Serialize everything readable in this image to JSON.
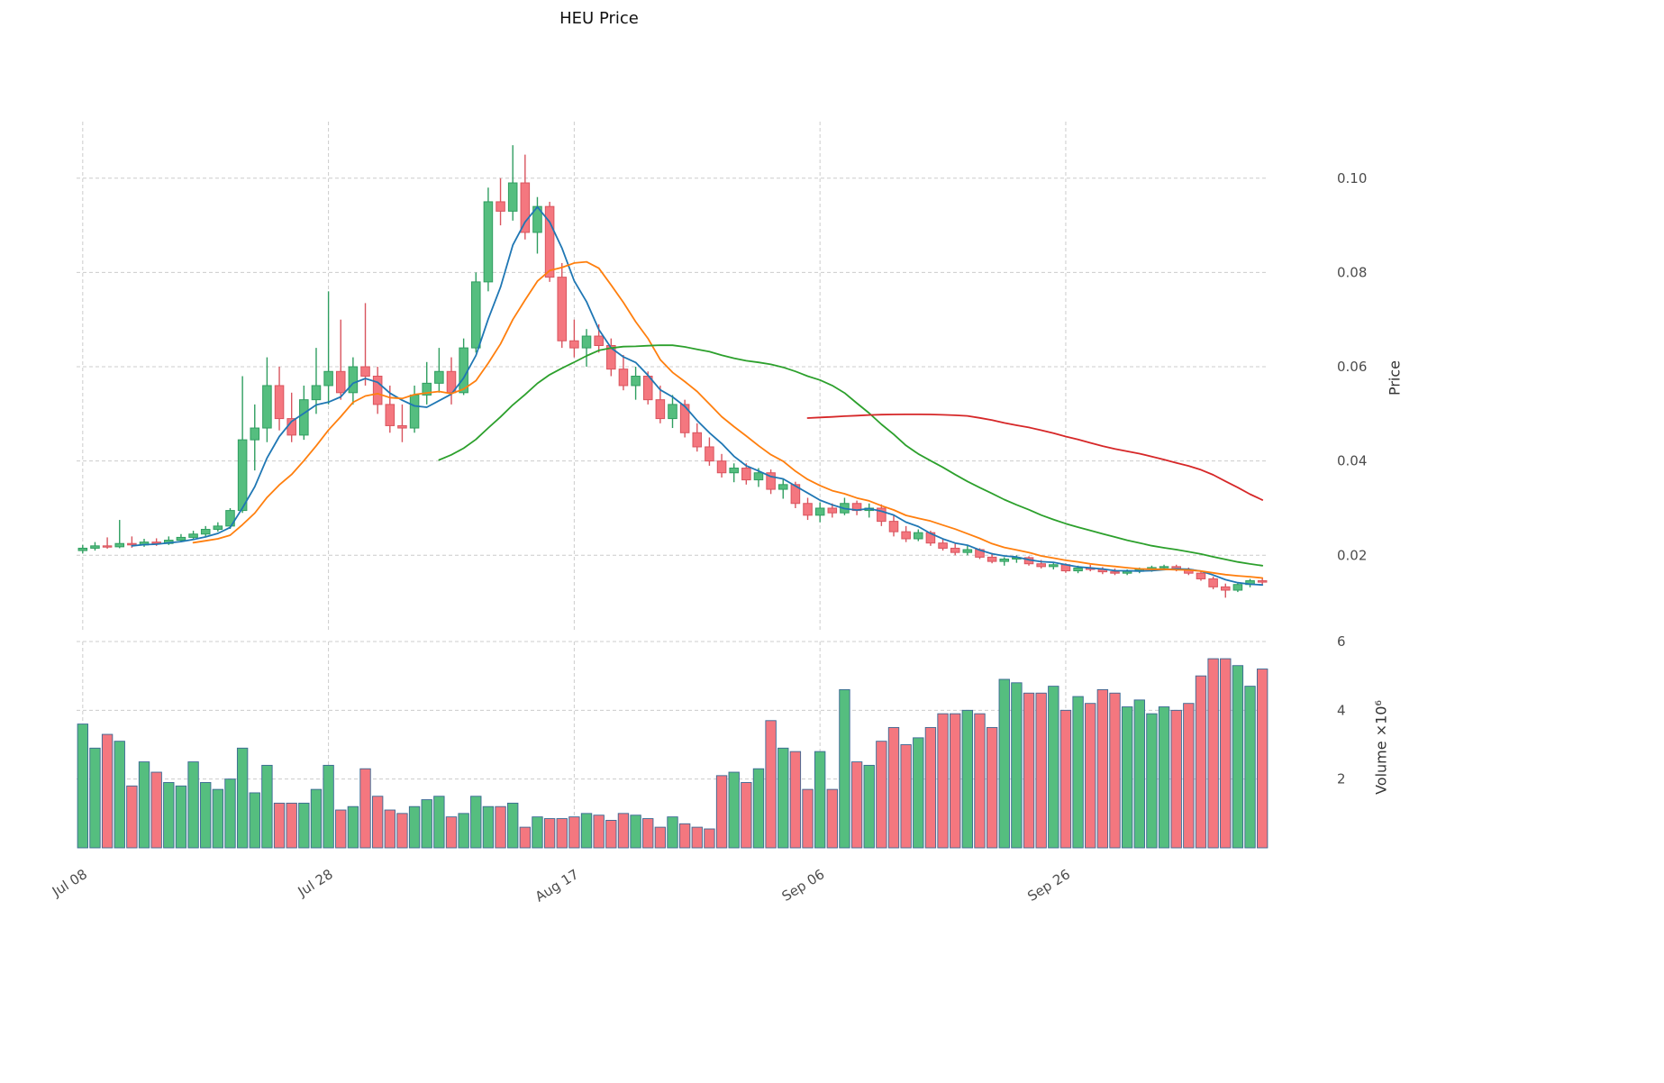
{
  "chart_data": {
    "type": "candlestick",
    "title": "HEU Price",
    "ylabel_price": "Price",
    "ylabel_volume": "Volume ×10⁶",
    "legend_position": "none",
    "grid": true,
    "price_axis": {
      "ticks": [
        0.02,
        0.04,
        0.06,
        0.08,
        0.1
      ],
      "min": 0.004,
      "max": 0.112
    },
    "volume_axis": {
      "ticks": [
        2,
        4,
        6
      ],
      "min": 0,
      "max": 6.0,
      "unit": "1e6"
    },
    "x_ticks": [
      {
        "label": "Jul 08",
        "index": 0
      },
      {
        "label": "Jul 28",
        "index": 20
      },
      {
        "label": "Aug 17",
        "index": 40
      },
      {
        "label": "Sep 06",
        "index": 60
      },
      {
        "label": "Sep 26",
        "index": 80
      }
    ],
    "moving_averages": [
      {
        "window": 5,
        "color": "#1f77b4"
      },
      {
        "window": 10,
        "color": "#ff7f0e"
      },
      {
        "window": 30,
        "color": "#2ca02c"
      },
      {
        "window": 60,
        "color": "#d62728"
      }
    ],
    "colors": {
      "up": "#55be7f",
      "up_edge": "#2f9e60",
      "down": "#f4777f",
      "down_edge": "#d9545e",
      "volume_edge": "#3a6894",
      "grid": "#cccccc",
      "background": "#ffffff"
    },
    "columns": [
      "date",
      "open",
      "high",
      "low",
      "close",
      "volume_millions"
    ],
    "ohlc": [
      [
        "Jul 08",
        0.021,
        0.0222,
        0.0204,
        0.0215,
        3.6
      ],
      [
        "Jul 09",
        0.0215,
        0.0228,
        0.021,
        0.022,
        2.9
      ],
      [
        "Jul 10",
        0.022,
        0.0238,
        0.0214,
        0.0218,
        3.3
      ],
      [
        "Jul 11",
        0.0218,
        0.0275,
        0.0215,
        0.0225,
        3.1
      ],
      [
        "Jul 12",
        0.0225,
        0.024,
        0.0216,
        0.0222,
        1.8
      ],
      [
        "Jul 13",
        0.0222,
        0.0235,
        0.0218,
        0.0228,
        2.5
      ],
      [
        "Jul 14",
        0.0228,
        0.0236,
        0.022,
        0.0225,
        2.2
      ],
      [
        "Jul 15",
        0.0225,
        0.024,
        0.0222,
        0.0232,
        1.9
      ],
      [
        "Jul 16",
        0.0232,
        0.0245,
        0.0228,
        0.0238,
        1.8
      ],
      [
        "Jul 17",
        0.0238,
        0.0252,
        0.0233,
        0.0245,
        2.5
      ],
      [
        "Jul 18",
        0.0245,
        0.0262,
        0.024,
        0.0255,
        1.9
      ],
      [
        "Jul 19",
        0.0255,
        0.027,
        0.025,
        0.0262,
        1.7
      ],
      [
        "Jul 20",
        0.0262,
        0.03,
        0.0256,
        0.0295,
        2.0
      ],
      [
        "Jul 21",
        0.0295,
        0.058,
        0.029,
        0.0445,
        2.9
      ],
      [
        "Jul 22",
        0.0445,
        0.052,
        0.038,
        0.047,
        1.6
      ],
      [
        "Jul 23",
        0.047,
        0.062,
        0.044,
        0.056,
        2.4
      ],
      [
        "Jul 24",
        0.056,
        0.06,
        0.0465,
        0.049,
        1.3
      ],
      [
        "Jul 25",
        0.049,
        0.0545,
        0.044,
        0.0455,
        1.3
      ],
      [
        "Jul 26",
        0.0455,
        0.056,
        0.0445,
        0.053,
        1.3
      ],
      [
        "Jul 27",
        0.053,
        0.064,
        0.05,
        0.056,
        1.7
      ],
      [
        "Jul 28",
        0.056,
        0.076,
        0.052,
        0.059,
        2.4
      ],
      [
        "Jul 29",
        0.059,
        0.07,
        0.053,
        0.0545,
        1.1
      ],
      [
        "Jul 30",
        0.0545,
        0.062,
        0.052,
        0.06,
        1.2
      ],
      [
        "Jul 31",
        0.06,
        0.0735,
        0.056,
        0.058,
        2.3
      ],
      [
        "Aug 01",
        0.058,
        0.06,
        0.05,
        0.052,
        1.5
      ],
      [
        "Aug 02",
        0.052,
        0.056,
        0.046,
        0.0475,
        1.1
      ],
      [
        "Aug 03",
        0.0475,
        0.052,
        0.044,
        0.047,
        1.0
      ],
      [
        "Aug 04",
        0.047,
        0.056,
        0.046,
        0.054,
        1.2
      ],
      [
        "Aug 05",
        0.054,
        0.061,
        0.052,
        0.0565,
        1.4
      ],
      [
        "Aug 06",
        0.0565,
        0.064,
        0.0545,
        0.059,
        1.5
      ],
      [
        "Aug 07",
        0.059,
        0.062,
        0.052,
        0.0545,
        0.9
      ],
      [
        "Aug 08",
        0.0545,
        0.066,
        0.054,
        0.064,
        1.0
      ],
      [
        "Aug 09",
        0.064,
        0.08,
        0.063,
        0.078,
        1.5
      ],
      [
        "Aug 10",
        0.078,
        0.098,
        0.076,
        0.095,
        1.2
      ],
      [
        "Aug 11",
        0.095,
        0.1,
        0.09,
        0.093,
        1.2
      ],
      [
        "Aug 12",
        0.093,
        0.107,
        0.091,
        0.099,
        1.3
      ],
      [
        "Aug 13",
        0.099,
        0.105,
        0.087,
        0.0885,
        0.6
      ],
      [
        "Aug 14",
        0.0885,
        0.096,
        0.084,
        0.094,
        0.9
      ],
      [
        "Aug 15",
        0.094,
        0.095,
        0.078,
        0.079,
        0.85
      ],
      [
        "Aug 16",
        0.079,
        0.082,
        0.064,
        0.0655,
        0.85
      ],
      [
        "Aug 17",
        0.0655,
        0.07,
        0.062,
        0.064,
        0.9
      ],
      [
        "Aug 18",
        0.064,
        0.068,
        0.06,
        0.0665,
        1.0
      ],
      [
        "Aug 19",
        0.0665,
        0.069,
        0.063,
        0.0645,
        0.95
      ],
      [
        "Aug 20",
        0.0645,
        0.066,
        0.058,
        0.0595,
        0.8
      ],
      [
        "Aug 21",
        0.0595,
        0.0625,
        0.055,
        0.056,
        1.0
      ],
      [
        "Aug 22",
        0.056,
        0.06,
        0.053,
        0.058,
        0.95
      ],
      [
        "Aug 23",
        0.058,
        0.059,
        0.052,
        0.053,
        0.85
      ],
      [
        "Aug 24",
        0.053,
        0.056,
        0.048,
        0.049,
        0.6
      ],
      [
        "Aug 25",
        0.049,
        0.054,
        0.047,
        0.052,
        0.9
      ],
      [
        "Aug 26",
        0.052,
        0.053,
        0.045,
        0.046,
        0.7
      ],
      [
        "Aug 27",
        0.046,
        0.048,
        0.042,
        0.043,
        0.6
      ],
      [
        "Aug 28",
        0.043,
        0.045,
        0.039,
        0.04,
        0.55
      ],
      [
        "Aug 29",
        0.04,
        0.0415,
        0.0365,
        0.0375,
        2.1
      ],
      [
        "Aug 30",
        0.0375,
        0.0395,
        0.0355,
        0.0385,
        2.2
      ],
      [
        "Aug 31",
        0.0385,
        0.0395,
        0.035,
        0.036,
        1.9
      ],
      [
        "Sep 01",
        0.036,
        0.0385,
        0.0345,
        0.0375,
        2.3
      ],
      [
        "Sep 02",
        0.0375,
        0.0382,
        0.033,
        0.034,
        3.7
      ],
      [
        "Sep 03",
        0.034,
        0.0362,
        0.032,
        0.035,
        2.9
      ],
      [
        "Sep 04",
        0.035,
        0.0356,
        0.03,
        0.031,
        2.8
      ],
      [
        "Sep 05",
        0.031,
        0.0322,
        0.0275,
        0.0285,
        1.7
      ],
      [
        "Sep 06",
        0.0285,
        0.0312,
        0.027,
        0.03,
        2.8
      ],
      [
        "Sep 07",
        0.03,
        0.031,
        0.028,
        0.029,
        1.7
      ],
      [
        "Sep 08",
        0.029,
        0.0322,
        0.0285,
        0.031,
        4.6
      ],
      [
        "Sep 09",
        0.031,
        0.0316,
        0.0285,
        0.0295,
        2.5
      ],
      [
        "Sep 10",
        0.0295,
        0.031,
        0.028,
        0.03,
        2.4
      ],
      [
        "Sep 11",
        0.03,
        0.0308,
        0.0262,
        0.0272,
        3.1
      ],
      [
        "Sep 12",
        0.0272,
        0.0285,
        0.024,
        0.025,
        3.5
      ],
      [
        "Sep 13",
        0.025,
        0.0262,
        0.0228,
        0.0235,
        3.0
      ],
      [
        "Sep 14",
        0.0235,
        0.0255,
        0.023,
        0.0248,
        3.2
      ],
      [
        "Sep 15",
        0.0248,
        0.0252,
        0.022,
        0.0226,
        3.5
      ],
      [
        "Sep 16",
        0.0226,
        0.0235,
        0.021,
        0.0215,
        3.9
      ],
      [
        "Sep 17",
        0.0215,
        0.0225,
        0.02,
        0.0206,
        3.9
      ],
      [
        "Sep 18",
        0.0206,
        0.022,
        0.02,
        0.0212,
        4.0
      ],
      [
        "Sep 19",
        0.0212,
        0.0215,
        0.0192,
        0.0196,
        3.9
      ],
      [
        "Sep 20",
        0.0196,
        0.0205,
        0.0183,
        0.0187,
        3.5
      ],
      [
        "Sep 21",
        0.0187,
        0.0196,
        0.0178,
        0.0192,
        4.9
      ],
      [
        "Sep 22",
        0.0192,
        0.02,
        0.0184,
        0.0195,
        4.8
      ],
      [
        "Sep 23",
        0.0195,
        0.0198,
        0.0178,
        0.0182,
        4.5
      ],
      [
        "Sep 24",
        0.0182,
        0.019,
        0.0172,
        0.0176,
        4.5
      ],
      [
        "Sep 25",
        0.0176,
        0.0185,
        0.017,
        0.018,
        4.7
      ],
      [
        "Sep 26",
        0.018,
        0.0183,
        0.0163,
        0.0167,
        4.0
      ],
      [
        "Sep 27",
        0.0167,
        0.0178,
        0.0162,
        0.0173,
        4.4
      ],
      [
        "Sep 28",
        0.0173,
        0.018,
        0.0166,
        0.017,
        4.2
      ],
      [
        "Sep 29",
        0.017,
        0.0175,
        0.016,
        0.0165,
        4.6
      ],
      [
        "Sep 30",
        0.0165,
        0.0172,
        0.0158,
        0.0162,
        4.5
      ],
      [
        "Oct 01",
        0.0162,
        0.017,
        0.0158,
        0.0166,
        4.1
      ],
      [
        "Oct 02",
        0.0166,
        0.0174,
        0.0162,
        0.017,
        4.3
      ],
      [
        "Oct 03",
        0.017,
        0.0178,
        0.0165,
        0.0174,
        3.9
      ],
      [
        "Oct 04",
        0.0174,
        0.018,
        0.0168,
        0.0176,
        4.1
      ],
      [
        "Oct 05",
        0.0176,
        0.018,
        0.0166,
        0.017,
        4.0
      ],
      [
        "Oct 06",
        0.017,
        0.0174,
        0.0158,
        0.0162,
        4.2
      ],
      [
        "Oct 07",
        0.0162,
        0.0166,
        0.0146,
        0.015,
        5.0
      ],
      [
        "Oct 08",
        0.015,
        0.0155,
        0.0128,
        0.0133,
        5.5
      ],
      [
        "Oct 09",
        0.0133,
        0.014,
        0.011,
        0.0126,
        5.5
      ],
      [
        "Oct 10",
        0.0126,
        0.0142,
        0.0122,
        0.0138,
        5.3
      ],
      [
        "Oct 11",
        0.0138,
        0.015,
        0.0132,
        0.0146,
        4.7
      ],
      [
        "Oct 12",
        0.0146,
        0.0152,
        0.0138,
        0.0143,
        5.2
      ]
    ]
  }
}
